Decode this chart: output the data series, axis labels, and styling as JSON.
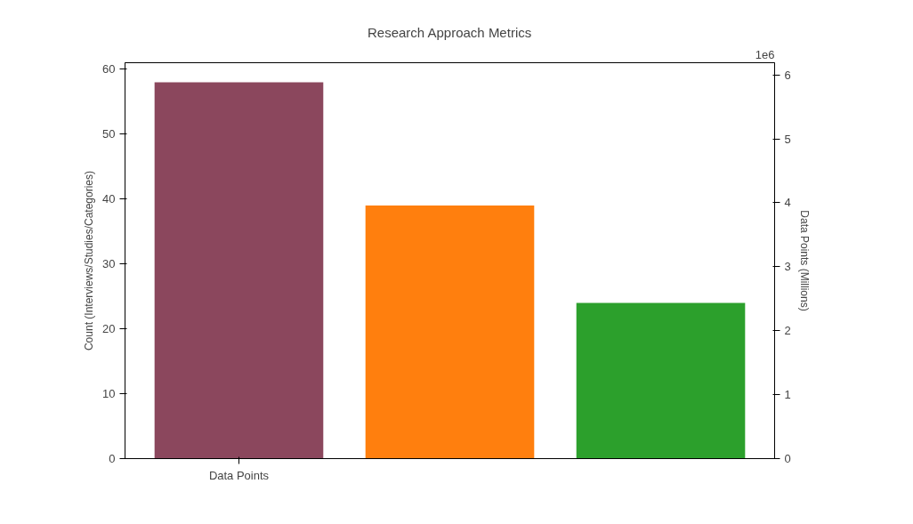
{
  "chart_data": {
    "type": "bar",
    "title": "Research Approach Metrics",
    "categories": [
      "Data Points",
      null,
      null
    ],
    "values": [
      58,
      39,
      24
    ],
    "colors": [
      "#8b475d",
      "#ff7f0e",
      "#2ca02c"
    ],
    "ylabel": "Count (Interviews/Studies/Categories)",
    "y2label": "Data Points (Millions)",
    "ylim": [
      0,
      61
    ],
    "yticks": [
      0,
      10,
      20,
      30,
      40,
      50,
      60
    ],
    "y2lim": [
      0,
      6.19
    ],
    "y2ticks": [
      0,
      1,
      2,
      3,
      4,
      5,
      6
    ],
    "annotations": [
      "1e6"
    ]
  }
}
